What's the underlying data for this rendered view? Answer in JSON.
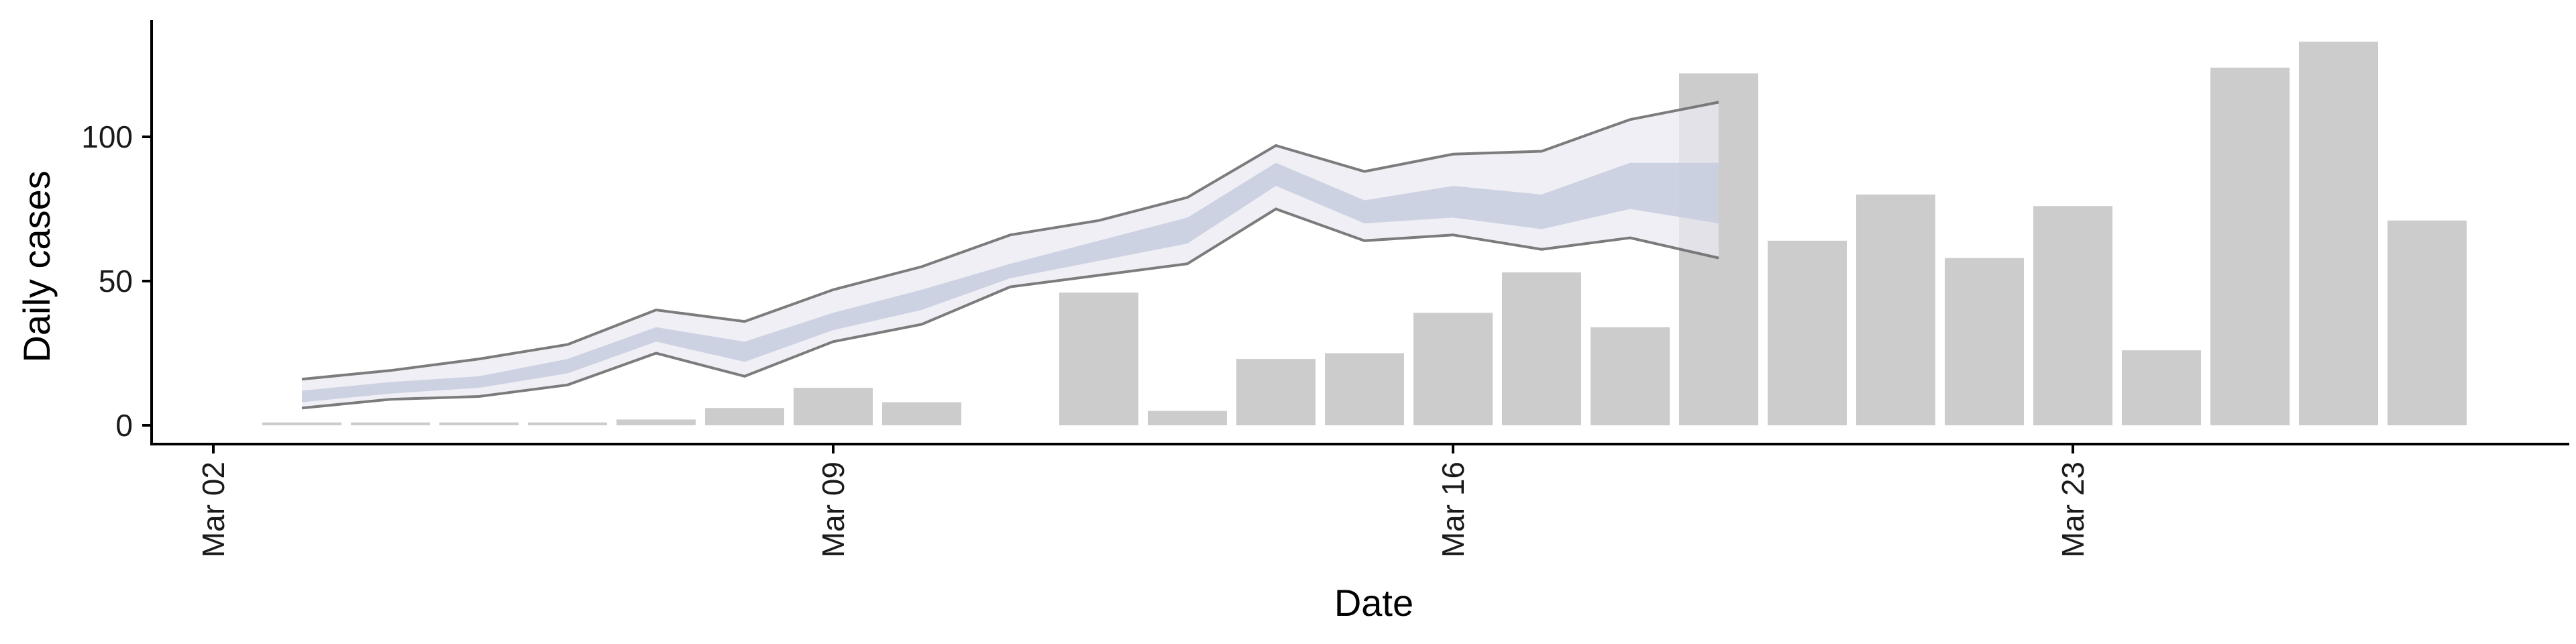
{
  "chart_data": {
    "type": "bar",
    "xlabel": "Date",
    "ylabel": "Daily cases",
    "ylim": [
      -6,
      140
    ],
    "grid": false,
    "x_ticks": [
      {
        "date": "2020-03-02",
        "label": "Mar 02"
      },
      {
        "date": "2020-03-09",
        "label": "Mar 09"
      },
      {
        "date": "2020-03-16",
        "label": "Mar 16"
      },
      {
        "date": "2020-03-23",
        "label": "Mar 23"
      }
    ],
    "y_ticks": [
      0,
      50,
      100
    ],
    "bars": {
      "name": "Observed daily cases",
      "color": "#cccccc",
      "dates": [
        "2020-03-03",
        "2020-03-04",
        "2020-03-05",
        "2020-03-06",
        "2020-03-07",
        "2020-03-08",
        "2020-03-09",
        "2020-03-10",
        "2020-03-11",
        "2020-03-12",
        "2020-03-13",
        "2020-03-14",
        "2020-03-15",
        "2020-03-16",
        "2020-03-17",
        "2020-03-18",
        "2020-03-19",
        "2020-03-20",
        "2020-03-21",
        "2020-03-22",
        "2020-03-23",
        "2020-03-24",
        "2020-03-25",
        "2020-03-26",
        "2020-03-27"
      ],
      "values": [
        1,
        1,
        1,
        1,
        2,
        6,
        13,
        8,
        0,
        46,
        5,
        23,
        25,
        39,
        53,
        34,
        122,
        64,
        80,
        58,
        76,
        26,
        124,
        133,
        71
      ]
    },
    "estimate": {
      "dates": [
        "2020-03-03",
        "2020-03-04",
        "2020-03-05",
        "2020-03-06",
        "2020-03-07",
        "2020-03-08",
        "2020-03-09",
        "2020-03-10",
        "2020-03-11",
        "2020-03-12",
        "2020-03-13",
        "2020-03-14",
        "2020-03-15",
        "2020-03-16",
        "2020-03-17",
        "2020-03-18",
        "2020-03-19"
      ],
      "outer_upper": [
        16,
        19,
        23,
        28,
        40,
        36,
        47,
        55,
        66,
        71,
        79,
        97,
        88,
        94,
        95,
        106,
        112
      ],
      "outer_lower": [
        6,
        9,
        10,
        14,
        25,
        17,
        29,
        35,
        48,
        52,
        56,
        75,
        64,
        66,
        61,
        65,
        58
      ],
      "inner_upper": [
        12,
        15,
        17,
        23,
        34,
        29,
        39,
        47,
        56,
        64,
        72,
        91,
        78,
        83,
        80,
        91,
        91
      ],
      "inner_lower": [
        8,
        11,
        13,
        18,
        29,
        22,
        33,
        40,
        51,
        57,
        63,
        83,
        70,
        72,
        68,
        75,
        70
      ],
      "outer_fill": "#e9eaf1",
      "inner_fill": "#c7cddf",
      "line_color": "#6e6e6e"
    }
  }
}
